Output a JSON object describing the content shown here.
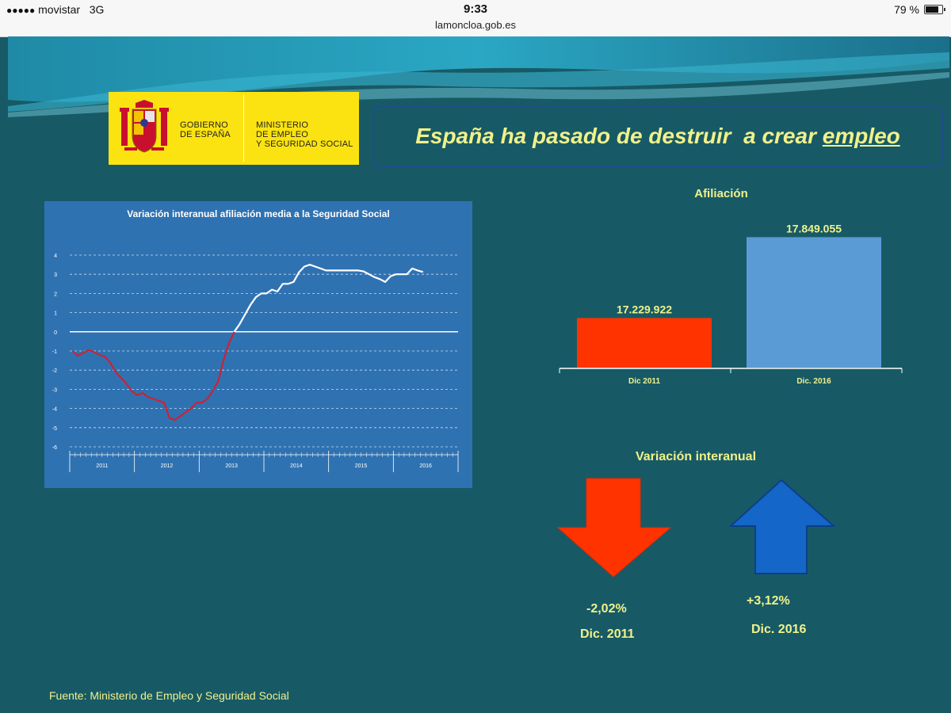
{
  "statusbar": {
    "carrier": "movistar",
    "network": "3G",
    "time": "9:33",
    "url": "lamoncloa.gob.es",
    "battery": "79 %"
  },
  "logo": {
    "left_line1": "GOBIERNO",
    "left_line2": "DE ESPAÑA",
    "right_line1": "MINISTERIO",
    "right_line2": "DE EMPLEO",
    "right_line3": "Y SEGURIDAD SOCIAL"
  },
  "headline": {
    "text": "España ha pasado de destruir  a crear ",
    "underlined": "empleo"
  },
  "colors": {
    "background": "#175a66",
    "accent_text": "#f1f18a",
    "negative": "#ff3300",
    "positive_bar": "#5b9bd5",
    "positive_arrow": "#1466c8",
    "chart_panel": "#2f72b2"
  },
  "chart_data": [
    {
      "type": "line",
      "title": "Variación interanual afiliación media a la Seguridad Social",
      "ylim": [
        -6,
        4
      ],
      "yticks": [
        4,
        3,
        2,
        1,
        0,
        -1,
        -2,
        -3,
        -4,
        -5,
        -6
      ],
      "grid": true,
      "x_categories": [
        "2011",
        "2012",
        "2013",
        "2014",
        "2015",
        "2016"
      ],
      "x_months": 72,
      "series": [
        {
          "color_negative": "#cc2233",
          "color_positive": "#ffffff",
          "points": [
            [
              0,
              -1.0
            ],
            [
              1,
              -1.25
            ],
            [
              2,
              -1.1
            ],
            [
              3,
              -0.95
            ],
            [
              4,
              -1.05
            ],
            [
              5,
              -1.2
            ],
            [
              6,
              -1.3
            ],
            [
              7,
              -1.6
            ],
            [
              8,
              -2.1
            ],
            [
              9,
              -2.4
            ],
            [
              10,
              -2.7
            ],
            [
              11,
              -3.1
            ],
            [
              12,
              -3.3
            ],
            [
              13,
              -3.2
            ],
            [
              14,
              -3.4
            ],
            [
              15,
              -3.5
            ],
            [
              16,
              -3.6
            ],
            [
              17,
              -3.7
            ],
            [
              18,
              -4.5
            ],
            [
              19,
              -4.6
            ],
            [
              20,
              -4.4
            ],
            [
              21,
              -4.2
            ],
            [
              22,
              -4.0
            ],
            [
              23,
              -3.7
            ],
            [
              24,
              -3.7
            ],
            [
              25,
              -3.5
            ],
            [
              26,
              -3.1
            ],
            [
              27,
              -2.6
            ],
            [
              28,
              -1.5
            ],
            [
              29,
              -0.6
            ],
            [
              30,
              0.0
            ],
            [
              31,
              0.4
            ],
            [
              32,
              0.9
            ],
            [
              33,
              1.4
            ],
            [
              34,
              1.8
            ],
            [
              35,
              2.0
            ],
            [
              36,
              2.0
            ],
            [
              37,
              2.2
            ],
            [
              38,
              2.1
            ],
            [
              39,
              2.5
            ],
            [
              40,
              2.5
            ],
            [
              41,
              2.6
            ],
            [
              42,
              3.1
            ],
            [
              43,
              3.4
            ],
            [
              44,
              3.5
            ],
            [
              45,
              3.4
            ],
            [
              46,
              3.3
            ],
            [
              47,
              3.2
            ],
            [
              48,
              3.2
            ],
            [
              49,
              3.2
            ],
            [
              50,
              3.2
            ],
            [
              51,
              3.2
            ],
            [
              52,
              3.2
            ],
            [
              53,
              3.2
            ],
            [
              54,
              3.15
            ],
            [
              55,
              3.0
            ],
            [
              56,
              2.85
            ],
            [
              57,
              2.75
            ],
            [
              58,
              2.6
            ],
            [
              59,
              2.9
            ],
            [
              60,
              3.0
            ],
            [
              61,
              3.0
            ],
            [
              62,
              3.0
            ],
            [
              63,
              3.3
            ],
            [
              64,
              3.2
            ],
            [
              65,
              3.12
            ]
          ]
        }
      ]
    },
    {
      "type": "bar",
      "title": "Afiliación",
      "categories": [
        "Dic 2011",
        "Dic. 2016"
      ],
      "values": [
        17229922,
        17849055
      ],
      "value_labels": [
        "17.229.922",
        "17.849.055"
      ],
      "colors": [
        "#ff3300",
        "#5b9bd5"
      ]
    }
  ],
  "variation": {
    "title": "Variación interanual",
    "left_value": "-2,02%",
    "left_label": "Dic. 2011",
    "right_value": "+3,12%",
    "right_label": "Dic. 2016"
  },
  "source": "Fuente: Ministerio de Empleo y Seguridad Social"
}
